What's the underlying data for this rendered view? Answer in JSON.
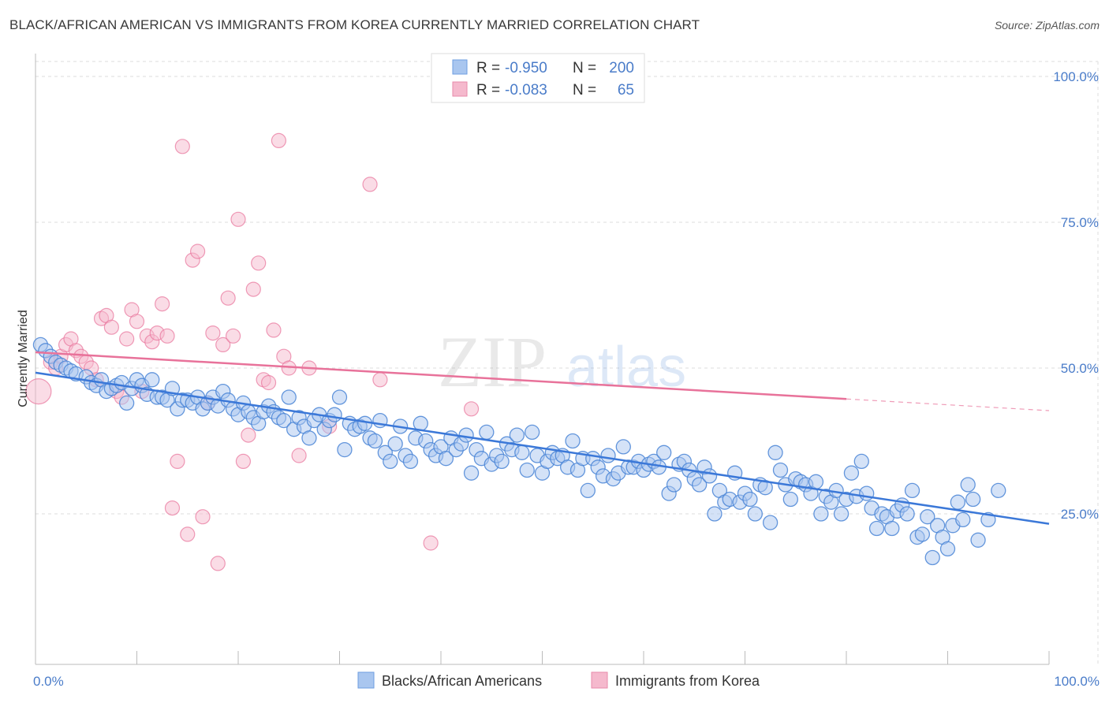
{
  "title": "BLACK/AFRICAN AMERICAN VS IMMIGRANTS FROM KOREA CURRENTLY MARRIED CORRELATION CHART",
  "source": "Source: ZipAtlas.com",
  "watermark": {
    "zip": "ZIP",
    "atlas": "atlas"
  },
  "colors": {
    "blue": "#4a85d6",
    "blue_fill": "#a9c6ef",
    "pink": "#e8729a",
    "pink_fill": "#f5b9cd",
    "tick_text": "#4a7cc9",
    "grid": "#dddddd"
  },
  "legend": {
    "rows": [
      {
        "r_label": "R =",
        "r_value": "-0.950",
        "n_label": "N =",
        "n_value": "200"
      },
      {
        "r_label": "R =",
        "r_value": "-0.083",
        "n_label": "N =",
        "n_value": "65"
      }
    ]
  },
  "bottom_legend": [
    "Blacks/African Americans",
    "Immigrants from Korea"
  ],
  "chart_data": {
    "type": "scatter",
    "title": "BLACK/AFRICAN AMERICAN VS IMMIGRANTS FROM KOREA CURRENTLY MARRIED CORRELATION CHART",
    "ylabel": "Currently Married",
    "xlabel": "",
    "xlim": [
      0,
      100
    ],
    "ylim": [
      0,
      100
    ],
    "x_tick_labels": {
      "left": "0.0%",
      "right": "100.0%"
    },
    "y_ticks": [
      {
        "value": 25,
        "label": "25.0%"
      },
      {
        "value": 50,
        "label": "50.0%"
      },
      {
        "value": 75,
        "label": "75.0%"
      },
      {
        "value": 100,
        "label": "100.0%"
      }
    ],
    "grid": true,
    "legend_position": "top-center",
    "series": [
      {
        "name": "Blacks/African Americans",
        "r": -0.95,
        "n": 200,
        "trend": {
          "x": [
            0,
            100
          ],
          "y": [
            49.2,
            23.3
          ]
        },
        "points": [
          [
            0.5,
            54
          ],
          [
            1,
            53
          ],
          [
            1.5,
            52
          ],
          [
            2,
            51
          ],
          [
            2.5,
            50.5
          ],
          [
            3,
            50
          ],
          [
            3.5,
            49.5
          ],
          [
            4,
            49
          ],
          [
            5,
            48.5
          ],
          [
            5.5,
            47.5
          ],
          [
            6,
            47
          ],
          [
            6.5,
            48
          ],
          [
            7,
            46
          ],
          [
            7.5,
            46.5
          ],
          [
            8,
            47
          ],
          [
            8.5,
            47.5
          ],
          [
            9,
            44
          ],
          [
            9.5,
            46.5
          ],
          [
            10,
            48
          ],
          [
            10.5,
            47
          ],
          [
            11,
            45.5
          ],
          [
            11.5,
            48
          ],
          [
            12,
            45
          ],
          [
            12.5,
            45
          ],
          [
            13,
            44.5
          ],
          [
            13.5,
            46.5
          ],
          [
            14,
            43
          ],
          [
            14.5,
            44.5
          ],
          [
            15,
            44.5
          ],
          [
            15.5,
            44
          ],
          [
            16,
            45
          ],
          [
            16.5,
            43
          ],
          [
            17,
            44
          ],
          [
            17.5,
            45
          ],
          [
            18,
            43.5
          ],
          [
            18.5,
            46
          ],
          [
            19,
            44.5
          ],
          [
            19.5,
            43
          ],
          [
            20,
            42
          ],
          [
            20.5,
            44
          ],
          [
            21,
            42.5
          ],
          [
            21.5,
            41.5
          ],
          [
            22,
            40.5
          ],
          [
            22.5,
            42.5
          ],
          [
            23,
            43.5
          ],
          [
            23.5,
            42.5
          ],
          [
            24,
            41.5
          ],
          [
            24.5,
            41
          ],
          [
            25,
            45
          ],
          [
            25.5,
            39.5
          ],
          [
            26,
            41.5
          ],
          [
            26.5,
            40
          ],
          [
            27,
            38
          ],
          [
            27.5,
            41
          ],
          [
            28,
            42
          ],
          [
            28.5,
            39.5
          ],
          [
            29,
            41
          ],
          [
            29.5,
            42
          ],
          [
            30,
            45
          ],
          [
            30.5,
            36
          ],
          [
            31,
            40.5
          ],
          [
            31.5,
            39.5
          ],
          [
            32,
            40
          ],
          [
            32.5,
            40.5
          ],
          [
            33,
            38
          ],
          [
            33.5,
            37.5
          ],
          [
            34,
            41
          ],
          [
            34.5,
            35.5
          ],
          [
            35,
            34
          ],
          [
            35.5,
            37
          ],
          [
            36,
            40
          ],
          [
            36.5,
            35
          ],
          [
            37,
            34
          ],
          [
            37.5,
            38
          ],
          [
            38,
            40.5
          ],
          [
            38.5,
            37.5
          ],
          [
            39,
            36
          ],
          [
            39.5,
            35
          ],
          [
            40,
            36.5
          ],
          [
            40.5,
            34.5
          ],
          [
            41,
            38
          ],
          [
            41.5,
            36
          ],
          [
            42,
            37
          ],
          [
            42.5,
            38.5
          ],
          [
            43,
            32
          ],
          [
            43.5,
            36
          ],
          [
            44,
            34.5
          ],
          [
            44.5,
            39
          ],
          [
            45,
            33.5
          ],
          [
            45.5,
            35
          ],
          [
            46,
            34
          ],
          [
            46.5,
            37
          ],
          [
            47,
            36
          ],
          [
            47.5,
            38.5
          ],
          [
            48,
            35.5
          ],
          [
            48.5,
            32.5
          ],
          [
            49,
            39
          ],
          [
            49.5,
            35
          ],
          [
            50,
            32
          ],
          [
            50.5,
            34
          ],
          [
            51,
            35.5
          ],
          [
            51.5,
            34.5
          ],
          [
            52,
            35
          ],
          [
            52.5,
            33
          ],
          [
            53,
            37.5
          ],
          [
            53.5,
            32.5
          ],
          [
            54,
            34.5
          ],
          [
            54.5,
            29
          ],
          [
            55,
            34.5
          ],
          [
            55.5,
            33
          ],
          [
            56,
            31.5
          ],
          [
            56.5,
            35
          ],
          [
            57,
            31
          ],
          [
            57.5,
            32
          ],
          [
            58,
            36.5
          ],
          [
            58.5,
            33
          ],
          [
            59,
            33
          ],
          [
            59.5,
            34
          ],
          [
            60,
            32.5
          ],
          [
            60.5,
            33.5
          ],
          [
            61,
            34
          ],
          [
            61.5,
            33
          ],
          [
            62,
            35.5
          ],
          [
            62.5,
            28.5
          ],
          [
            63,
            30
          ],
          [
            63.5,
            33.5
          ],
          [
            64,
            34
          ],
          [
            64.5,
            32.5
          ],
          [
            65,
            31
          ],
          [
            65.5,
            30
          ],
          [
            66,
            33
          ],
          [
            66.5,
            31.5
          ],
          [
            67,
            25
          ],
          [
            67.5,
            29
          ],
          [
            68,
            27
          ],
          [
            68.5,
            27.5
          ],
          [
            69,
            32
          ],
          [
            69.5,
            27
          ],
          [
            70,
            28.5
          ],
          [
            70.5,
            27.5
          ],
          [
            71,
            25
          ],
          [
            71.5,
            30
          ],
          [
            72,
            29.5
          ],
          [
            72.5,
            23.5
          ],
          [
            73,
            35.5
          ],
          [
            73.5,
            32.5
          ],
          [
            74,
            30
          ],
          [
            74.5,
            27.5
          ],
          [
            75,
            31
          ],
          [
            75.5,
            30.5
          ],
          [
            76,
            30
          ],
          [
            76.5,
            28.5
          ],
          [
            77,
            30.5
          ],
          [
            77.5,
            25
          ],
          [
            78,
            28
          ],
          [
            78.5,
            27
          ],
          [
            79,
            29
          ],
          [
            79.5,
            25
          ],
          [
            80,
            27.5
          ],
          [
            80.5,
            32
          ],
          [
            81,
            28
          ],
          [
            81.5,
            34
          ],
          [
            82,
            28.5
          ],
          [
            82.5,
            26
          ],
          [
            83,
            22.5
          ],
          [
            83.5,
            25
          ],
          [
            84,
            24.5
          ],
          [
            84.5,
            22.5
          ],
          [
            85,
            25.5
          ],
          [
            85.5,
            26.5
          ],
          [
            86,
            25
          ],
          [
            86.5,
            29
          ],
          [
            87,
            21
          ],
          [
            87.5,
            21.5
          ],
          [
            88,
            24.5
          ],
          [
            88.5,
            17.5
          ],
          [
            89,
            23
          ],
          [
            89.5,
            21
          ],
          [
            90,
            19
          ],
          [
            90.5,
            23
          ],
          [
            91,
            27
          ],
          [
            91.5,
            24
          ],
          [
            92,
            30
          ],
          [
            92.5,
            27.5
          ],
          [
            93,
            20.5
          ],
          [
            94,
            24
          ],
          [
            95,
            29
          ]
        ]
      },
      {
        "name": "Immigrants from Korea",
        "r": -0.083,
        "n": 65,
        "trend": {
          "x": [
            0,
            80,
            100
          ],
          "y": [
            52.7,
            44.7,
            42.7
          ],
          "solid_until": 80
        },
        "points": [
          [
            0.3,
            46
          ],
          [
            1.5,
            51
          ],
          [
            2,
            50
          ],
          [
            2.5,
            52
          ],
          [
            3,
            54
          ],
          [
            3.5,
            55
          ],
          [
            4,
            53
          ],
          [
            4.5,
            52
          ],
          [
            5,
            51
          ],
          [
            5.5,
            50
          ],
          [
            6,
            48
          ],
          [
            6.5,
            58.5
          ],
          [
            7,
            59
          ],
          [
            7.5,
            57
          ],
          [
            8,
            46
          ],
          [
            8.5,
            45
          ],
          [
            9,
            55
          ],
          [
            9.5,
            60
          ],
          [
            10,
            58
          ],
          [
            10.5,
            46
          ],
          [
            11,
            55.5
          ],
          [
            11.5,
            54.5
          ],
          [
            12,
            56
          ],
          [
            12.5,
            61
          ],
          [
            13,
            55.5
          ],
          [
            13.5,
            26
          ],
          [
            14,
            34
          ],
          [
            14.5,
            88
          ],
          [
            15,
            21.5
          ],
          [
            15.5,
            68.5
          ],
          [
            16,
            70
          ],
          [
            16.5,
            24.5
          ],
          [
            17,
            44
          ],
          [
            17.5,
            56
          ],
          [
            18,
            16.5
          ],
          [
            18.5,
            54
          ],
          [
            19,
            62
          ],
          [
            19.5,
            55.5
          ],
          [
            20,
            75.5
          ],
          [
            20.5,
            34
          ],
          [
            21,
            38.5
          ],
          [
            21.5,
            63.5
          ],
          [
            22,
            68
          ],
          [
            22.5,
            48
          ],
          [
            23,
            47.5
          ],
          [
            23.5,
            56.5
          ],
          [
            24,
            89
          ],
          [
            24.5,
            52
          ],
          [
            25,
            50
          ],
          [
            26,
            35
          ],
          [
            27,
            50
          ],
          [
            29,
            40
          ],
          [
            33,
            81.5
          ],
          [
            34,
            48
          ],
          [
            39,
            20
          ],
          [
            43,
            43
          ]
        ]
      }
    ]
  }
}
